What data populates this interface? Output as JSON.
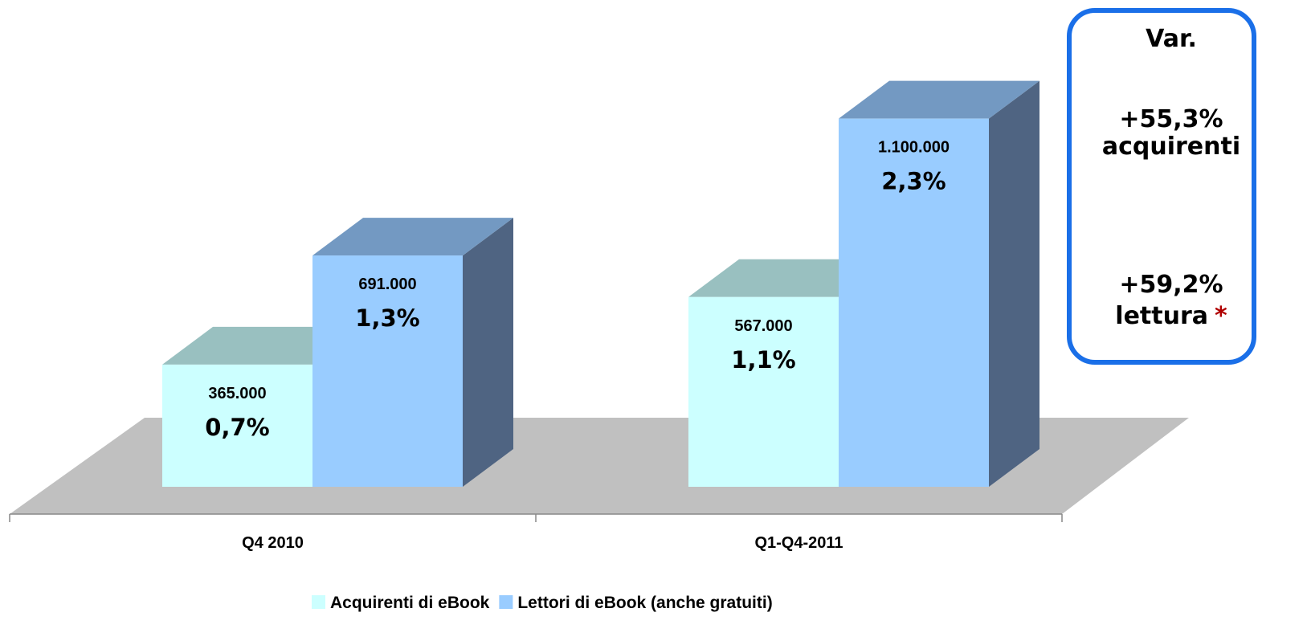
{
  "chart_data": {
    "type": "bar3d",
    "categories": [
      "Q4 2010",
      "Q1-Q4-2011"
    ],
    "series": [
      {
        "name": "Acquirenti di eBook",
        "color": "#ccffff",
        "top_color": "#99c0c0",
        "side_color": "#6b8a8a",
        "values": [
          365000,
          567000
        ],
        "value_labels": [
          "365.000",
          "567.000"
        ],
        "percent_labels": [
          "0,7%",
          "1,1%"
        ]
      },
      {
        "name": "Lettori di eBook (anche gratuiti)",
        "color": "#99ccff",
        "top_color": "#7399c2",
        "side_color": "#4f6482",
        "values": [
          691000,
          1100000
        ],
        "value_labels": [
          "691.000",
          "1.100.000"
        ],
        "percent_labels": [
          "1,3%",
          "2,3%"
        ]
      }
    ],
    "ylim": [
      0,
      1200000
    ],
    "annotation": {
      "title": "Var.",
      "items": [
        {
          "value": "+55,3%",
          "label": "acquirenti"
        },
        {
          "value": "+59,2%",
          "label": "lettura",
          "marker": "*"
        }
      ]
    }
  }
}
